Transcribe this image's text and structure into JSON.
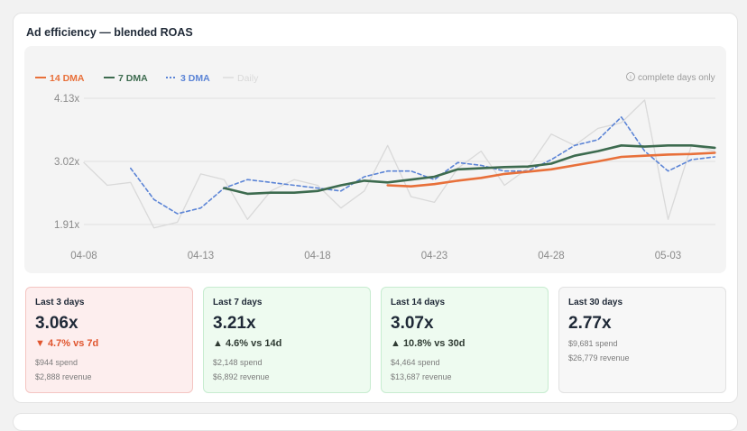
{
  "title": "Ad efficiency — blended ROAS",
  "note": "complete days only",
  "colors": {
    "dma14": "#e8703a",
    "dma7": "#3d6b4f",
    "dma3": "#5b84d6",
    "daily": "#d9d9d9",
    "down": "#e0552e",
    "up": "#2f3b33"
  },
  "legend": [
    {
      "label": "14 DMA",
      "series": "dma14",
      "style": "solid"
    },
    {
      "label": "7 DMA",
      "series": "dma7",
      "style": "solid"
    },
    {
      "label": "3 DMA",
      "series": "dma3",
      "style": "dashed"
    },
    {
      "label": "Daily",
      "series": "daily",
      "style": "solid"
    }
  ],
  "chart_data": {
    "type": "line",
    "x": [
      "04-08",
      "04-09",
      "04-10",
      "04-11",
      "04-12",
      "04-13",
      "04-14",
      "04-15",
      "04-16",
      "04-17",
      "04-18",
      "04-19",
      "04-20",
      "04-21",
      "04-22",
      "04-23",
      "04-24",
      "04-25",
      "04-26",
      "04-27",
      "04-28",
      "04-29",
      "04-30",
      "05-01",
      "05-02",
      "05-03",
      "05-04",
      "05-05"
    ],
    "x_ticks": [
      "04-08",
      "04-13",
      "04-18",
      "04-23",
      "04-28",
      "05-03"
    ],
    "y_ticks": [
      "4.13x",
      "3.02x",
      "1.91x"
    ],
    "y_tick_values": [
      4.13,
      3.02,
      1.91
    ],
    "ylim": [
      1.6,
      4.4
    ],
    "grid": true,
    "series": [
      {
        "name": "Daily",
        "key": "daily",
        "values": [
          3.0,
          2.6,
          2.65,
          1.85,
          1.95,
          2.8,
          2.7,
          2.0,
          2.5,
          2.7,
          2.6,
          2.2,
          2.5,
          3.3,
          2.4,
          2.3,
          2.9,
          3.2,
          2.6,
          2.9,
          3.5,
          3.3,
          3.6,
          3.7,
          4.1,
          2.0,
          3.3,
          3.2
        ]
      },
      {
        "name": "3 DMA",
        "key": "dma3",
        "values": [
          null,
          null,
          2.9,
          2.35,
          2.1,
          2.2,
          2.55,
          2.7,
          2.65,
          2.6,
          2.55,
          2.5,
          2.75,
          2.85,
          2.85,
          2.7,
          3.0,
          2.95,
          2.85,
          2.85,
          3.05,
          3.3,
          3.4,
          3.8,
          3.2,
          2.85,
          3.05,
          3.1
        ]
      },
      {
        "name": "7 DMA",
        "key": "dma7",
        "values": [
          null,
          null,
          null,
          null,
          null,
          null,
          2.55,
          2.45,
          2.47,
          2.47,
          2.5,
          2.6,
          2.68,
          2.65,
          2.7,
          2.75,
          2.88,
          2.9,
          2.92,
          2.93,
          2.98,
          3.12,
          3.2,
          3.3,
          3.28,
          3.3,
          3.3,
          3.26
        ]
      },
      {
        "name": "14 DMA",
        "key": "dma14",
        "values": [
          null,
          null,
          null,
          null,
          null,
          null,
          null,
          null,
          null,
          null,
          null,
          null,
          null,
          2.6,
          2.58,
          2.62,
          2.68,
          2.73,
          2.8,
          2.84,
          2.88,
          2.95,
          3.02,
          3.1,
          3.12,
          3.14,
          3.15,
          3.17
        ]
      }
    ]
  },
  "tiles": [
    {
      "label": "Last 3 days",
      "value": "3.06x",
      "change": "▼ 4.7% vs 7d",
      "direction": "down",
      "spend": "$944 spend",
      "revenue": "$2,888 revenue",
      "bg": "#fdeeee",
      "border": "#f4c5c2"
    },
    {
      "label": "Last 7 days",
      "value": "3.21x",
      "change": "▲ 4.6% vs 14d",
      "direction": "up",
      "spend": "$2,148 spend",
      "revenue": "$6,892 revenue",
      "bg": "#eefbf0",
      "border": "#c7ecd0"
    },
    {
      "label": "Last 14 days",
      "value": "3.07x",
      "change": "▲ 10.8% vs 30d",
      "direction": "up",
      "spend": "$4,464 spend",
      "revenue": "$13,687 revenue",
      "bg": "#eefbf0",
      "border": "#c7ecd0"
    },
    {
      "label": "Last 30 days",
      "value": "2.77x",
      "change": "",
      "direction": "none",
      "spend": "$9,681 spend",
      "revenue": "$26,779 revenue",
      "bg": "#f7f7f7",
      "border": "#e2e2e2"
    }
  ]
}
